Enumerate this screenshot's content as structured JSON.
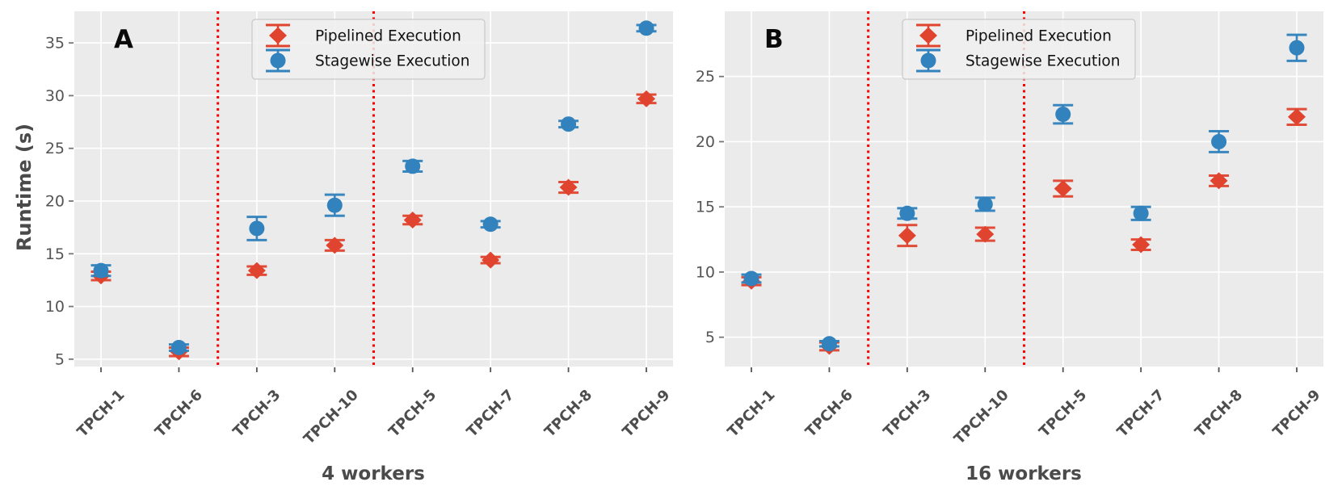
{
  "figure": {
    "ylabel": "Runtime (s)",
    "legend_labels": [
      "Pipelined Execution",
      "Stagewise Execution"
    ]
  },
  "style": {
    "pipelined_color": "#E0442F",
    "stagewise_color": "#3182BD",
    "separator_color": "#FF0000",
    "plot_bg": "#EBEBEB",
    "grid_color": "#FFFFFF",
    "tick_label_color": "#555555",
    "x_tick_label_color": "#4d4d4d",
    "legend_bg": "rgba(240,240,240,0.85)",
    "legend_border": "#c9c9c9",
    "legend_text_color": "#111111"
  },
  "chart_data": [
    {
      "type": "scatter",
      "panel_label": "A",
      "xlabel": "4 workers",
      "ylabel": "Runtime (s)",
      "categories": [
        "TPCH-1",
        "TPCH-6",
        "TPCH-3",
        "TPCH-10",
        "TPCH-5",
        "TPCH-7",
        "TPCH-8",
        "TPCH-9"
      ],
      "yticks": [
        5,
        10,
        15,
        20,
        25,
        30,
        35
      ],
      "ylim": [
        4.3,
        38.0
      ],
      "grid": true,
      "separators_x": [
        1.5,
        3.5
      ],
      "legend_position": "upper left inside",
      "series": [
        {
          "name": "Pipelined Execution",
          "marker": "diamond",
          "color": "#E0442F",
          "values": [
            12.9,
            5.7,
            13.4,
            15.8,
            18.2,
            14.4,
            21.3,
            29.7
          ],
          "yerr": [
            0.4,
            0.4,
            0.4,
            0.5,
            0.4,
            0.3,
            0.5,
            0.4
          ]
        },
        {
          "name": "Stagewise Execution",
          "marker": "circle",
          "color": "#3182BD",
          "values": [
            13.4,
            6.1,
            17.4,
            19.6,
            23.3,
            17.8,
            27.3,
            36.4
          ],
          "yerr": [
            0.5,
            0.3,
            1.1,
            1.0,
            0.5,
            0.3,
            0.3,
            0.3
          ]
        }
      ]
    },
    {
      "type": "scatter",
      "panel_label": "B",
      "xlabel": "16 workers",
      "categories": [
        "TPCH-1",
        "TPCH-6",
        "TPCH-3",
        "TPCH-10",
        "TPCH-5",
        "TPCH-7",
        "TPCH-8",
        "TPCH-9"
      ],
      "yticks": [
        5,
        10,
        15,
        20,
        25
      ],
      "ylim": [
        2.75,
        30.0
      ],
      "grid": true,
      "separators_x": [
        1.5,
        3.5
      ],
      "legend_position": "upper left inside",
      "series": [
        {
          "name": "Pipelined Execution",
          "marker": "diamond",
          "color": "#E0442F",
          "values": [
            9.3,
            4.3,
            12.8,
            12.9,
            16.4,
            12.1,
            17.0,
            21.9
          ],
          "yerr": [
            0.3,
            0.3,
            0.8,
            0.5,
            0.6,
            0.4,
            0.4,
            0.6
          ]
        },
        {
          "name": "Stagewise Execution",
          "marker": "circle",
          "color": "#3182BD",
          "values": [
            9.5,
            4.5,
            14.5,
            15.2,
            22.1,
            14.5,
            20.0,
            27.2
          ],
          "yerr": [
            0.3,
            0.2,
            0.4,
            0.5,
            0.7,
            0.5,
            0.8,
            1.0
          ]
        }
      ]
    }
  ]
}
